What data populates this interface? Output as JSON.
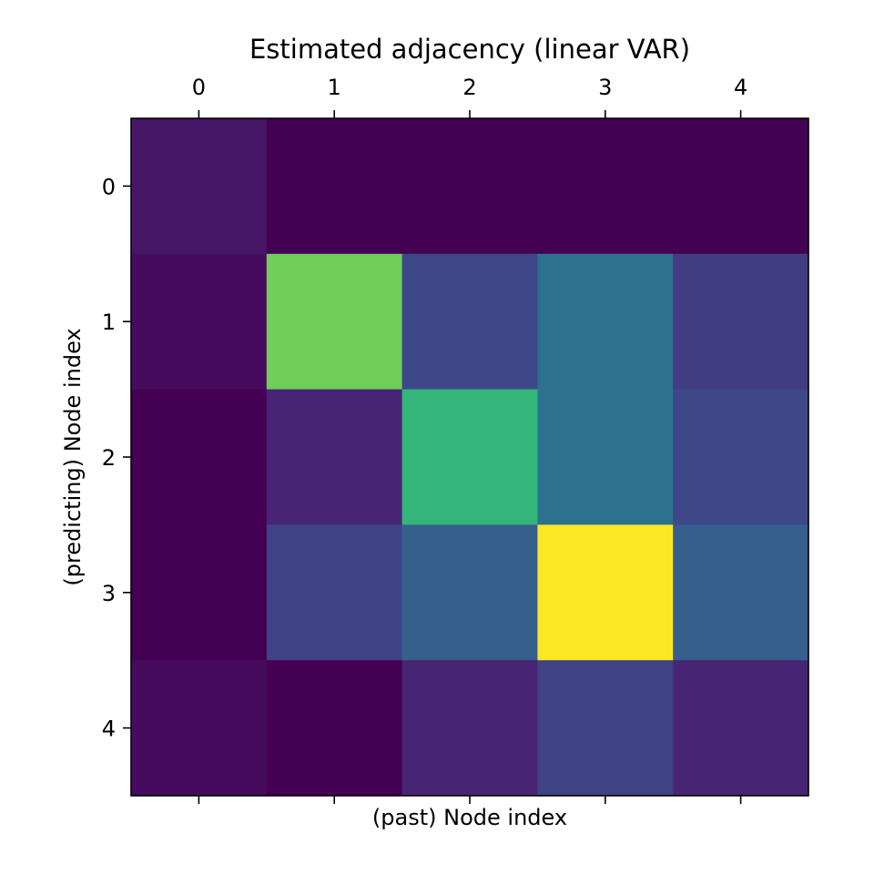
{
  "chart_data": {
    "type": "heatmap",
    "title": "Estimated adjacency (linear VAR)",
    "xlabel": "(past) Node index",
    "ylabel": "(predicting) Node index",
    "x_ticks": [
      "0",
      "1",
      "2",
      "3",
      "4"
    ],
    "y_ticks": [
      "0",
      "1",
      "2",
      "3",
      "4"
    ],
    "x_tick_position": "top",
    "colormap": "viridis",
    "values": [
      [
        0.06,
        0.0,
        0.0,
        0.0,
        0.0
      ],
      [
        0.03,
        0.78,
        0.22,
        0.37,
        0.18
      ],
      [
        0.0,
        0.1,
        0.66,
        0.37,
        0.22
      ],
      [
        0.0,
        0.2,
        0.3,
        1.0,
        0.3
      ],
      [
        0.03,
        0.0,
        0.1,
        0.2,
        0.1
      ]
    ]
  },
  "colors": {
    "viridis": [
      "#440154",
      "#482878",
      "#3e4989",
      "#31688e",
      "#26828e",
      "#1f9e89",
      "#35b779",
      "#6ece58",
      "#b5de2b",
      "#fde725"
    ]
  }
}
